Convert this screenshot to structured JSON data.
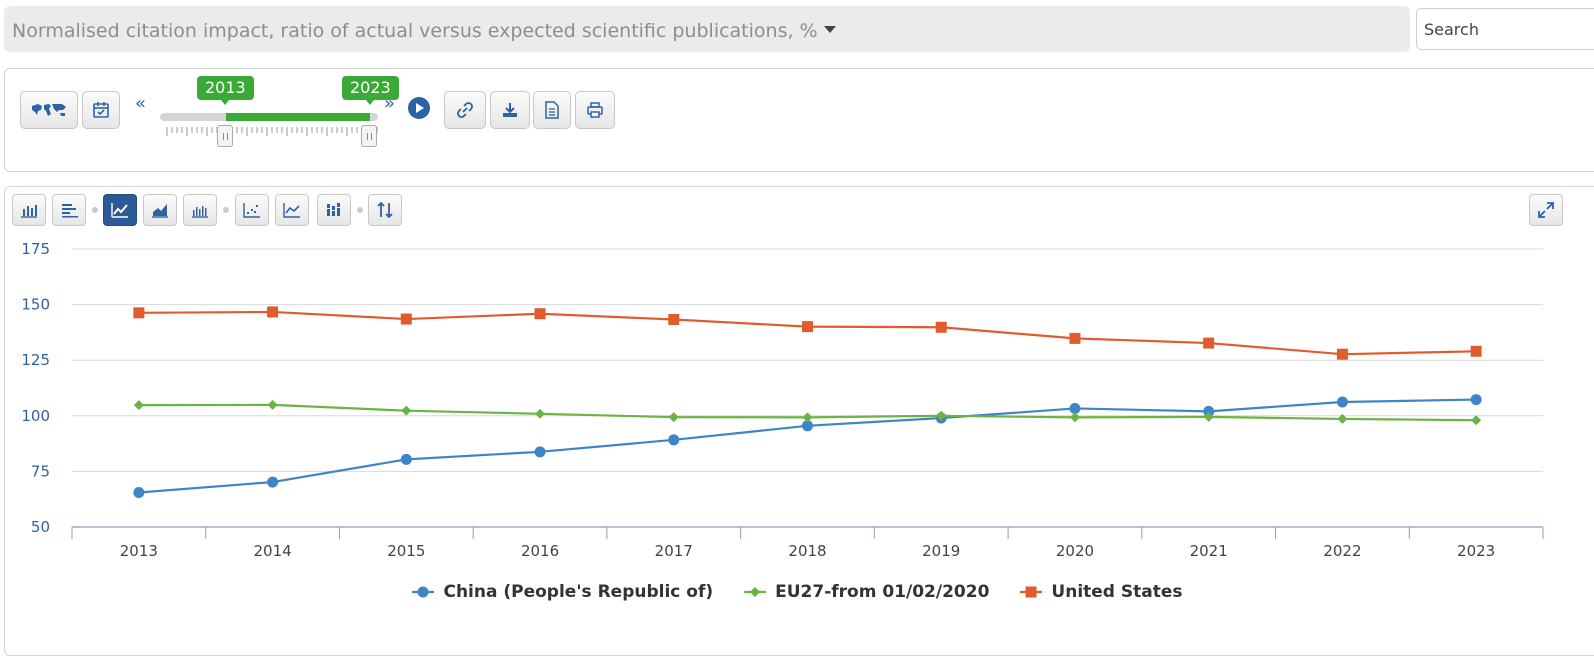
{
  "header": {
    "title": "Normalised citation impact, ratio of actual versus expected scientific publications, %"
  },
  "search": {
    "placeholder": "Search"
  },
  "timeline": {
    "start_year": "2013",
    "end_year": "2023",
    "prev_label": "«",
    "next_label": "»"
  },
  "icons": {
    "map": "world-map-icon",
    "calendar": "calendar-icon",
    "play": "play-icon",
    "link": "link-icon",
    "download": "download-icon",
    "document": "document-icon",
    "print": "print-icon",
    "expand": "expand-icon"
  },
  "colors": {
    "accent": "#2e62a6",
    "green": "#3aa936",
    "china": "#3d85c6",
    "eu": "#6ab344",
    "us": "#e05c2c"
  },
  "chart_data": {
    "type": "line",
    "title": "Normalised citation impact, ratio of actual versus expected scientific publications, %",
    "xlabel": "",
    "ylabel": "",
    "categories": [
      "2013",
      "2014",
      "2015",
      "2016",
      "2017",
      "2018",
      "2019",
      "2020",
      "2021",
      "2022",
      "2023"
    ],
    "ylim": [
      50,
      175
    ],
    "yticks": [
      50,
      75,
      100,
      125,
      150,
      175
    ],
    "grid": true,
    "legend_position": "bottom",
    "series": [
      {
        "name": "China (People's Republic of)",
        "color": "#3d85c6",
        "marker": "circle",
        "values": [
          65.5,
          70.2,
          80.4,
          83.8,
          89.2,
          95.5,
          99.0,
          103.3,
          102.0,
          106.2,
          107.3
        ]
      },
      {
        "name": "EU27-from 01/02/2020",
        "color": "#6ab344",
        "marker": "diamond",
        "values": [
          104.8,
          104.9,
          102.3,
          100.9,
          99.4,
          99.3,
          100.0,
          99.3,
          99.5,
          98.6,
          98.0
        ]
      },
      {
        "name": "United States",
        "color": "#e05c2c",
        "marker": "square",
        "values": [
          146.3,
          146.7,
          143.5,
          145.9,
          143.3,
          140.1,
          139.8,
          134.8,
          132.7,
          127.7,
          129.0
        ]
      }
    ]
  }
}
